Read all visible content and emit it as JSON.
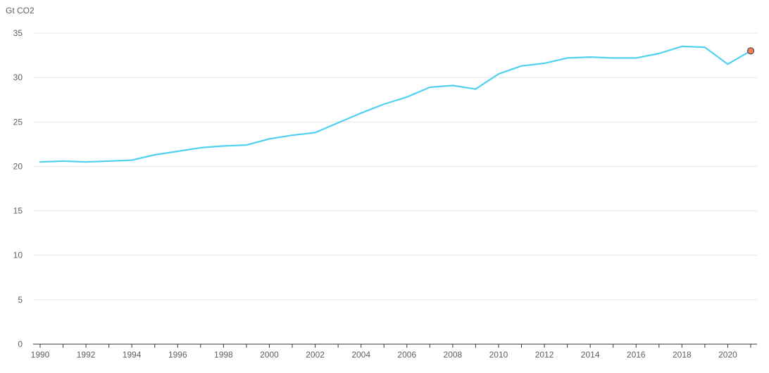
{
  "chart_data": {
    "type": "line",
    "ylabel": "Gt CO2",
    "xlim": [
      1990,
      2021
    ],
    "ylim": [
      0,
      35
    ],
    "y_ticks": [
      0,
      5,
      10,
      15,
      20,
      25,
      30,
      35
    ],
    "x_ticks": [
      1990,
      1992,
      1994,
      1996,
      1998,
      2000,
      2002,
      2004,
      2006,
      2008,
      2010,
      2012,
      2014,
      2016,
      2018,
      2020
    ],
    "grid": "horizontal",
    "legend": "none",
    "colors": {
      "line": "#4fd1ef",
      "last_point": "#f0825d",
      "last_point_stroke": "#333333"
    },
    "series": [
      {
        "x": [
          1990,
          1991,
          1992,
          1993,
          1994,
          1995,
          1996,
          1997,
          1998,
          1999,
          2000,
          2001,
          2002,
          2003,
          2004,
          2005,
          2006,
          2007,
          2008,
          2009,
          2010,
          2011,
          2012,
          2013,
          2014,
          2015,
          2016,
          2017,
          2018,
          2019,
          2020,
          2021
        ],
        "values": [
          20.5,
          20.6,
          20.5,
          20.6,
          20.7,
          21.3,
          21.7,
          22.1,
          22.3,
          22.4,
          23.1,
          23.5,
          23.8,
          24.9,
          26.0,
          27.0,
          27.8,
          28.9,
          29.1,
          28.7,
          30.4,
          31.3,
          31.6,
          32.2,
          32.3,
          32.2,
          32.2,
          32.7,
          33.5,
          33.4,
          31.5,
          33.0
        ]
      }
    ],
    "highlight_last_point": true
  }
}
